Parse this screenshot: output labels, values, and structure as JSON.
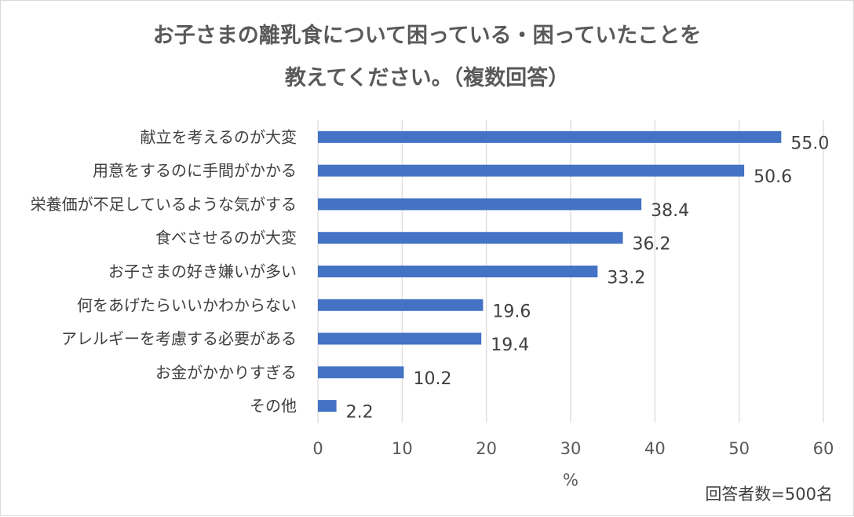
{
  "chart_data": {
    "type": "bar",
    "orientation": "horizontal",
    "title_lines": [
      "お子さまの離乳食について困っている・困っていたことを",
      "教えてください。（複数回答）"
    ],
    "categories": [
      "献立を考えるのが大変",
      "用意をするのに手間がかかる",
      "栄養価が不足しているような気がする",
      "食べさせるのが大変",
      "お子さまの好き嫌いが多い",
      "何をあげたらいいかわからない",
      "アレルギーを考慮する必要がある",
      "お金がかかりすぎる",
      "その他"
    ],
    "values": [
      55.0,
      50.6,
      38.4,
      36.2,
      33.2,
      19.6,
      19.4,
      10.2,
      2.2
    ],
    "data_labels": [
      "55.0",
      "50.6",
      "38.4",
      "36.2",
      "33.2",
      "19.6",
      "19.4",
      "10.2",
      "2.2"
    ],
    "xlabel": "%",
    "xlim": [
      0,
      60
    ],
    "xticks": [
      0,
      10,
      20,
      30,
      40,
      50,
      60
    ],
    "grid": true,
    "bar_color": "#4472c4",
    "note": "回答者数=500名"
  }
}
